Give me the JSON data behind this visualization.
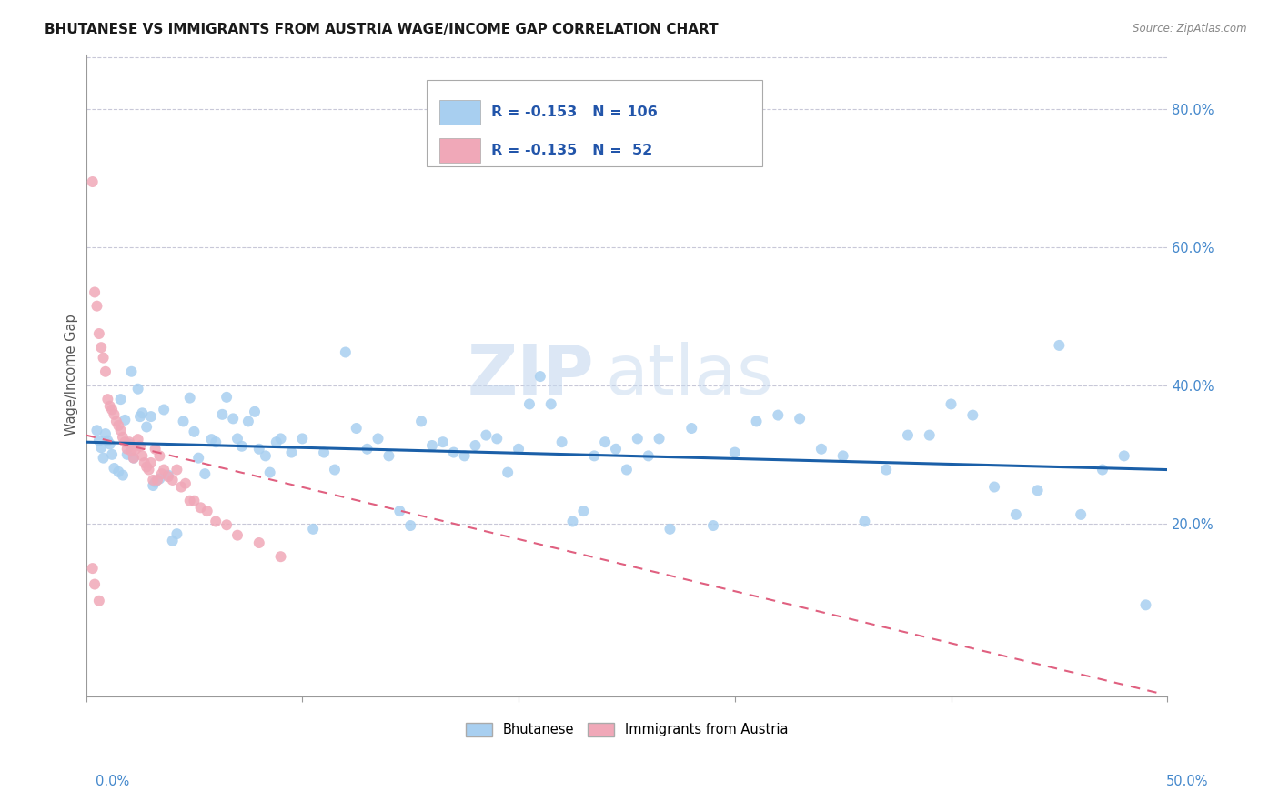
{
  "title": "BHUTANESE VS IMMIGRANTS FROM AUSTRIA WAGE/INCOME GAP CORRELATION CHART",
  "source": "Source: ZipAtlas.com",
  "ylabel": "Wage/Income Gap",
  "right_yticks": [
    "80.0%",
    "60.0%",
    "40.0%",
    "20.0%"
  ],
  "right_ytick_vals": [
    0.8,
    0.6,
    0.4,
    0.2
  ],
  "xlim": [
    0.0,
    0.5
  ],
  "ylim": [
    -0.05,
    0.88
  ],
  "blue_scatter": [
    [
      0.005,
      0.335
    ],
    [
      0.006,
      0.32
    ],
    [
      0.007,
      0.31
    ],
    [
      0.008,
      0.295
    ],
    [
      0.009,
      0.33
    ],
    [
      0.01,
      0.32
    ],
    [
      0.011,
      0.315
    ],
    [
      0.012,
      0.3
    ],
    [
      0.013,
      0.28
    ],
    [
      0.015,
      0.275
    ],
    [
      0.016,
      0.38
    ],
    [
      0.017,
      0.27
    ],
    [
      0.018,
      0.35
    ],
    [
      0.019,
      0.3
    ],
    [
      0.02,
      0.315
    ],
    [
      0.021,
      0.42
    ],
    [
      0.022,
      0.295
    ],
    [
      0.024,
      0.395
    ],
    [
      0.025,
      0.355
    ],
    [
      0.026,
      0.36
    ],
    [
      0.028,
      0.34
    ],
    [
      0.03,
      0.355
    ],
    [
      0.031,
      0.255
    ],
    [
      0.032,
      0.26
    ],
    [
      0.034,
      0.265
    ],
    [
      0.036,
      0.365
    ],
    [
      0.038,
      0.27
    ],
    [
      0.04,
      0.175
    ],
    [
      0.042,
      0.185
    ],
    [
      0.045,
      0.348
    ],
    [
      0.048,
      0.382
    ],
    [
      0.05,
      0.333
    ],
    [
      0.052,
      0.295
    ],
    [
      0.055,
      0.272
    ],
    [
      0.058,
      0.322
    ],
    [
      0.06,
      0.318
    ],
    [
      0.063,
      0.358
    ],
    [
      0.065,
      0.383
    ],
    [
      0.068,
      0.352
    ],
    [
      0.07,
      0.323
    ],
    [
      0.072,
      0.312
    ],
    [
      0.075,
      0.348
    ],
    [
      0.078,
      0.362
    ],
    [
      0.08,
      0.308
    ],
    [
      0.083,
      0.298
    ],
    [
      0.085,
      0.274
    ],
    [
      0.088,
      0.318
    ],
    [
      0.09,
      0.323
    ],
    [
      0.095,
      0.303
    ],
    [
      0.1,
      0.323
    ],
    [
      0.105,
      0.192
    ],
    [
      0.11,
      0.303
    ],
    [
      0.115,
      0.278
    ],
    [
      0.12,
      0.448
    ],
    [
      0.125,
      0.338
    ],
    [
      0.13,
      0.308
    ],
    [
      0.135,
      0.323
    ],
    [
      0.14,
      0.298
    ],
    [
      0.145,
      0.218
    ],
    [
      0.15,
      0.197
    ],
    [
      0.155,
      0.348
    ],
    [
      0.16,
      0.313
    ],
    [
      0.165,
      0.318
    ],
    [
      0.17,
      0.303
    ],
    [
      0.175,
      0.298
    ],
    [
      0.18,
      0.313
    ],
    [
      0.185,
      0.328
    ],
    [
      0.19,
      0.323
    ],
    [
      0.195,
      0.274
    ],
    [
      0.2,
      0.308
    ],
    [
      0.205,
      0.373
    ],
    [
      0.21,
      0.413
    ],
    [
      0.215,
      0.373
    ],
    [
      0.22,
      0.318
    ],
    [
      0.225,
      0.203
    ],
    [
      0.23,
      0.218
    ],
    [
      0.235,
      0.298
    ],
    [
      0.24,
      0.318
    ],
    [
      0.245,
      0.308
    ],
    [
      0.25,
      0.278
    ],
    [
      0.255,
      0.323
    ],
    [
      0.26,
      0.298
    ],
    [
      0.265,
      0.323
    ],
    [
      0.27,
      0.192
    ],
    [
      0.28,
      0.338
    ],
    [
      0.29,
      0.197
    ],
    [
      0.3,
      0.303
    ],
    [
      0.31,
      0.348
    ],
    [
      0.32,
      0.357
    ],
    [
      0.33,
      0.352
    ],
    [
      0.34,
      0.308
    ],
    [
      0.35,
      0.298
    ],
    [
      0.36,
      0.203
    ],
    [
      0.37,
      0.278
    ],
    [
      0.38,
      0.328
    ],
    [
      0.39,
      0.328
    ],
    [
      0.4,
      0.373
    ],
    [
      0.41,
      0.357
    ],
    [
      0.42,
      0.253
    ],
    [
      0.43,
      0.213
    ],
    [
      0.44,
      0.248
    ],
    [
      0.45,
      0.458
    ],
    [
      0.46,
      0.213
    ],
    [
      0.47,
      0.278
    ],
    [
      0.48,
      0.298
    ],
    [
      0.49,
      0.082
    ]
  ],
  "pink_scatter": [
    [
      0.003,
      0.695
    ],
    [
      0.004,
      0.535
    ],
    [
      0.005,
      0.515
    ],
    [
      0.006,
      0.475
    ],
    [
      0.007,
      0.455
    ],
    [
      0.008,
      0.44
    ],
    [
      0.009,
      0.42
    ],
    [
      0.01,
      0.38
    ],
    [
      0.011,
      0.37
    ],
    [
      0.012,
      0.365
    ],
    [
      0.013,
      0.358
    ],
    [
      0.014,
      0.348
    ],
    [
      0.015,
      0.342
    ],
    [
      0.016,
      0.335
    ],
    [
      0.017,
      0.325
    ],
    [
      0.018,
      0.318
    ],
    [
      0.019,
      0.308
    ],
    [
      0.02,
      0.318
    ],
    [
      0.021,
      0.305
    ],
    [
      0.022,
      0.295
    ],
    [
      0.023,
      0.308
    ],
    [
      0.024,
      0.322
    ],
    [
      0.025,
      0.312
    ],
    [
      0.006,
      0.088
    ],
    [
      0.003,
      0.135
    ],
    [
      0.004,
      0.112
    ],
    [
      0.026,
      0.298
    ],
    [
      0.027,
      0.288
    ],
    [
      0.028,
      0.282
    ],
    [
      0.029,
      0.278
    ],
    [
      0.03,
      0.288
    ],
    [
      0.031,
      0.263
    ],
    [
      0.032,
      0.308
    ],
    [
      0.033,
      0.263
    ],
    [
      0.034,
      0.298
    ],
    [
      0.035,
      0.272
    ],
    [
      0.036,
      0.278
    ],
    [
      0.038,
      0.268
    ],
    [
      0.04,
      0.263
    ],
    [
      0.042,
      0.278
    ],
    [
      0.044,
      0.253
    ],
    [
      0.046,
      0.258
    ],
    [
      0.048,
      0.233
    ],
    [
      0.05,
      0.233
    ],
    [
      0.053,
      0.223
    ],
    [
      0.056,
      0.218
    ],
    [
      0.06,
      0.203
    ],
    [
      0.065,
      0.198
    ],
    [
      0.07,
      0.183
    ],
    [
      0.08,
      0.172
    ],
    [
      0.09,
      0.152
    ]
  ],
  "blue_line_x": [
    0.0,
    0.5
  ],
  "blue_line_y": [
    0.318,
    0.278
  ],
  "pink_line_x": [
    0.0,
    0.495
  ],
  "pink_line_y": [
    0.328,
    -0.045
  ],
  "blue_color": "#a8cff0",
  "pink_color": "#f0a8b8",
  "blue_line_color": "#1a5fa8",
  "pink_line_color": "#e06080",
  "marker_size": 75,
  "background_color": "#ffffff",
  "watermark": "ZIPatlas",
  "grid_color": "#c8c8d8"
}
